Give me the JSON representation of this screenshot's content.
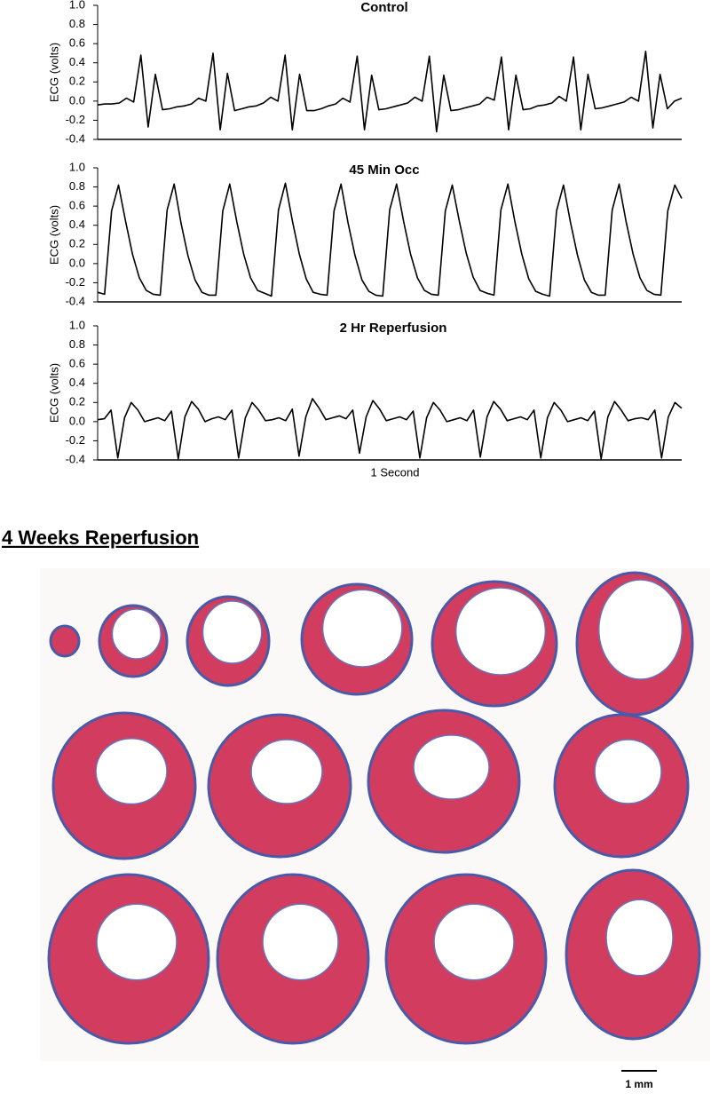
{
  "chart_data": [
    {
      "type": "line",
      "title": "Control",
      "ylabel": "ECG (volts)",
      "color": "#000000",
      "ylim": [
        -0.4,
        1
      ],
      "yticks": [
        -0.4,
        -0.2,
        {
          "value": 0,
          "label": "0.0"
        },
        0.2,
        0.4,
        0.6,
        0.8,
        {
          "value": 1,
          "label": "1.0"
        }
      ],
      "values": [
        -0.04,
        -0.03,
        -0.03,
        -0.02,
        0.03,
        -0.01,
        0.48,
        -0.27,
        0.28,
        -0.09,
        -0.08,
        -0.06,
        -0.05,
        -0.03,
        0.03,
        0.0,
        0.5,
        -0.3,
        0.29,
        -0.1,
        -0.08,
        -0.06,
        -0.05,
        -0.02,
        0.04,
        0.0,
        0.48,
        -0.3,
        0.28,
        -0.1,
        -0.1,
        -0.08,
        -0.05,
        -0.03,
        0.03,
        -0.01,
        0.47,
        -0.3,
        0.27,
        -0.09,
        -0.08,
        -0.06,
        -0.04,
        -0.02,
        0.04,
        0.0,
        0.47,
        -0.32,
        0.27,
        -0.1,
        -0.09,
        -0.07,
        -0.05,
        -0.03,
        0.04,
        0.01,
        0.46,
        -0.3,
        0.27,
        -0.09,
        -0.08,
        -0.05,
        -0.04,
        -0.02,
        0.05,
        0.0,
        0.46,
        -0.3,
        0.28,
        -0.08,
        -0.07,
        -0.05,
        -0.03,
        -0.01,
        0.04,
        0.0,
        0.52,
        -0.28,
        0.28,
        -0.08,
        0.0,
        0.03
      ]
    },
    {
      "type": "line",
      "title": "45 Min Occ",
      "ylabel": "ECG (volts)",
      "color": "#000000",
      "ylim": [
        -0.4,
        1
      ],
      "yticks": [
        -0.4,
        -0.2,
        {
          "value": 0,
          "label": "0.0"
        },
        0.2,
        0.4,
        0.6,
        0.8,
        {
          "value": 1,
          "label": "1.0"
        }
      ],
      "values": [
        -0.3,
        -0.32,
        0.55,
        0.82,
        0.45,
        0.1,
        -0.15,
        -0.28,
        -0.32,
        -0.33,
        0.56,
        0.83,
        0.42,
        0.08,
        -0.17,
        -0.3,
        -0.33,
        -0.33,
        0.55,
        0.83,
        0.44,
        0.1,
        -0.15,
        -0.28,
        -0.31,
        -0.34,
        0.56,
        0.84,
        0.45,
        0.1,
        -0.16,
        -0.3,
        -0.32,
        -0.33,
        0.55,
        0.83,
        0.43,
        0.09,
        -0.17,
        -0.29,
        -0.33,
        -0.34,
        0.56,
        0.83,
        0.44,
        0.1,
        -0.15,
        -0.28,
        -0.32,
        -0.33,
        0.55,
        0.82,
        0.45,
        0.11,
        -0.14,
        -0.28,
        -0.31,
        -0.33,
        0.56,
        0.83,
        0.44,
        0.1,
        -0.16,
        -0.29,
        -0.32,
        -0.34,
        0.55,
        0.82,
        0.43,
        0.09,
        -0.17,
        -0.3,
        -0.33,
        -0.33,
        0.56,
        0.83,
        0.44,
        0.1,
        -0.15,
        -0.28,
        -0.32,
        -0.33,
        0.55,
        0.82,
        0.68
      ]
    },
    {
      "type": "line",
      "title": "2 Hr Reperfusion",
      "ylabel": "ECG (volts)",
      "xlabel": "1 Second",
      "color": "#000000",
      "ylim": [
        -0.4,
        1
      ],
      "yticks": [
        -0.4,
        -0.2,
        {
          "value": 0,
          "label": "0.0"
        },
        0.2,
        0.4,
        0.6,
        0.8,
        {
          "value": 1,
          "label": "1.0"
        }
      ],
      "values": [
        0.02,
        0.03,
        0.12,
        -0.38,
        0.04,
        0.2,
        0.12,
        0.0,
        0.02,
        0.04,
        0.01,
        0.11,
        -0.39,
        0.05,
        0.21,
        0.13,
        0.0,
        0.03,
        0.05,
        0.02,
        0.12,
        -0.38,
        0.04,
        0.2,
        0.12,
        0.01,
        0.02,
        0.04,
        0.01,
        0.13,
        -0.36,
        0.05,
        0.24,
        0.14,
        0.02,
        0.04,
        0.06,
        0.03,
        0.12,
        -0.33,
        0.05,
        0.22,
        0.13,
        0.01,
        0.03,
        0.05,
        0.02,
        0.11,
        -0.38,
        0.04,
        0.2,
        0.12,
        0.0,
        0.02,
        0.04,
        0.01,
        0.12,
        -0.37,
        0.05,
        0.21,
        0.13,
        0.01,
        0.03,
        0.05,
        0.02,
        0.12,
        -0.38,
        0.04,
        0.2,
        0.12,
        0.0,
        0.02,
        0.04,
        0.01,
        0.11,
        -0.39,
        0.05,
        0.21,
        0.12,
        0.01,
        0.03,
        0.04,
        0.02,
        0.12,
        -0.38,
        0.05,
        0.2,
        0.14
      ]
    }
  ],
  "section_title": "4 Weeks Reperfusion",
  "scale_bar": "1 mm"
}
